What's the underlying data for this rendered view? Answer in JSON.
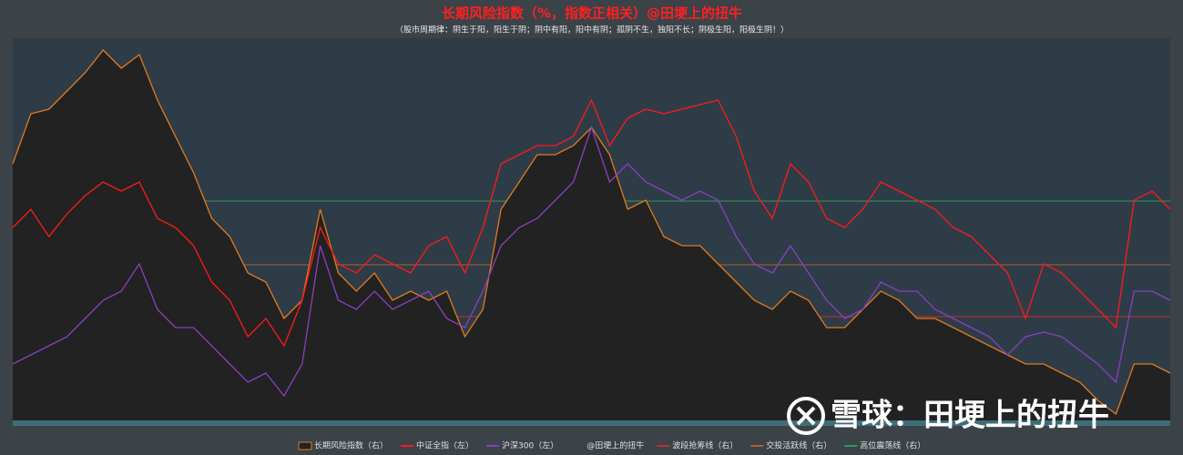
{
  "chart_data": {
    "type": "line",
    "title": "长期风险指数（%，指数正相关）@田埂上的扭牛",
    "subtitle": "（股市周期律：阴生于阳，阳生于阴；阴中有阳，阳中有阴；孤阴不生，独阳不长；阴极生阳，阳极生阴！）",
    "watermark": "雪球：田埂上的扭牛",
    "ylim": [
      0,
      420
    ],
    "y2lim": [
      0,
      420
    ],
    "series": [
      {
        "name": "长期风险指数（右）",
        "color": "#e07a1f",
        "fill": "#222222",
        "axis": "y2",
        "area": true,
        "values": [
          282,
          337,
          342,
          362,
          382,
          407,
          387,
          402,
          352,
          312,
          272,
          222,
          202,
          162,
          152,
          112,
          132,
          232,
          162,
          142,
          162,
          132,
          142,
          132,
          142,
          92,
          122,
          232,
          262,
          292,
          292,
          302,
          322,
          292,
          232,
          242,
          202,
          192,
          192,
          172,
          152,
          132,
          122,
          142,
          132,
          102,
          102,
          122,
          142,
          132,
          112,
          112,
          102,
          92,
          82,
          72,
          62,
          62,
          52,
          42,
          22,
          7,
          62,
          62,
          52
        ]
      },
      {
        "name": "中证全指（左）",
        "color": "#ff1a1a",
        "axis": "y",
        "values": [
          212,
          232,
          202,
          227,
          247,
          262,
          252,
          262,
          222,
          212,
          192,
          152,
          132,
          92,
          112,
          82,
          132,
          212,
          172,
          162,
          182,
          172,
          162,
          192,
          202,
          162,
          212,
          282,
          292,
          302,
          302,
          312,
          352,
          302,
          332,
          342,
          337,
          342,
          347,
          352,
          312,
          252,
          222,
          282,
          262,
          222,
          212,
          232,
          262,
          252,
          242,
          232,
          212,
          202,
          182,
          162,
          112,
          172,
          162,
          142,
          122,
          102,
          242,
          252,
          232
        ]
      },
      {
        "name": "沪深300（左）",
        "color": "#8a3fc0",
        "axis": "y",
        "values": [
          62,
          72,
          82,
          92,
          112,
          132,
          142,
          172,
          122,
          102,
          102,
          82,
          62,
          42,
          52,
          27,
          62,
          192,
          132,
          122,
          142,
          122,
          132,
          142,
          112,
          102,
          142,
          192,
          212,
          222,
          242,
          262,
          322,
          262,
          282,
          262,
          252,
          242,
          252,
          242,
          202,
          172,
          162,
          192,
          162,
          132,
          112,
          122,
          152,
          142,
          142,
          122,
          112,
          102,
          92,
          72,
          92,
          97,
          92,
          77,
          62,
          42,
          142,
          142,
          132
        ]
      }
    ],
    "legend_note": "@田埂上的扭牛",
    "reference_lines": [
      {
        "name": "波段抢筹线（右）",
        "color": "#c0302a",
        "value": 114
      },
      {
        "name": "交投活跃线（右）",
        "color": "#b0602a",
        "value": 171
      },
      {
        "name": "高位震荡线（右）",
        "color": "#2e9a5a",
        "value": 241
      }
    ]
  }
}
